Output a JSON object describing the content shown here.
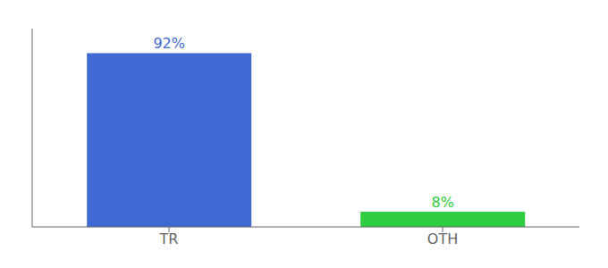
{
  "chart_data": {
    "type": "bar",
    "categories": [
      "TR",
      "OTH"
    ],
    "values": [
      92,
      8
    ],
    "value_labels": [
      "92%",
      "8%"
    ],
    "colors": [
      "#4169d4",
      "#2ecc40"
    ],
    "ylim": [
      0,
      105
    ],
    "grid": false,
    "tick_labels": "x"
  }
}
